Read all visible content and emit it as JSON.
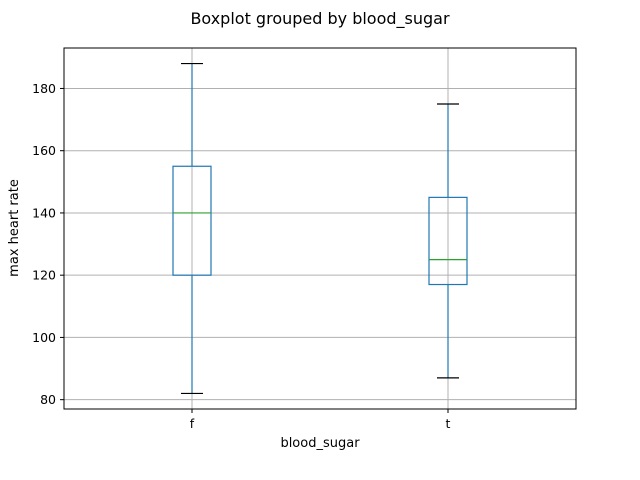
{
  "chart_data": {
    "type": "box",
    "title": "Boxplot grouped by blood_sugar",
    "xlabel": "blood_sugar",
    "ylabel": "max heart rate",
    "categories": [
      "f",
      "t"
    ],
    "boxes": [
      {
        "category": "f",
        "whisker_low": 82,
        "q1": 120,
        "median": 140,
        "q3": 155,
        "whisker_high": 188
      },
      {
        "category": "t",
        "whisker_low": 87,
        "q1": 117,
        "median": 125,
        "q3": 145,
        "whisker_high": 175
      }
    ],
    "ylim": [
      77,
      193
    ],
    "yticks": [
      80,
      100,
      120,
      140,
      160,
      180
    ],
    "grid": true,
    "colors": {
      "box": "#1f77b4",
      "median": "#2ca02c",
      "cap": "#000000",
      "grid": "#b0b0b0"
    }
  }
}
